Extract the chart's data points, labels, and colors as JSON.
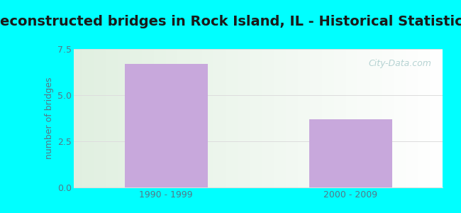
{
  "title": "Reconstructed bridges in Rock Island, IL - Historical Statistics",
  "categories": [
    "1990 - 1999",
    "2000 - 2009"
  ],
  "values": [
    6.7,
    3.7
  ],
  "bar_color": "#c8a8dc",
  "ylabel": "number of bridges",
  "ylim": [
    0,
    7.5
  ],
  "yticks": [
    0,
    2.5,
    5,
    7.5
  ],
  "outer_bg": "#00ffff",
  "plot_bg_topleft": "#e8f5e0",
  "plot_bg_topright": "#ddeeff",
  "plot_bg_bottomleft": "#e0f0d8",
  "plot_bg_bottomright": "#ffffff",
  "title_fontsize": 14,
  "title_color": "#1a1a1a",
  "ylabel_color": "#557788",
  "tick_color": "#557788",
  "xtick_color": "#557788",
  "grid_color": "#dddddd",
  "watermark": "City-Data.com",
  "watermark_color": "#aacccc"
}
